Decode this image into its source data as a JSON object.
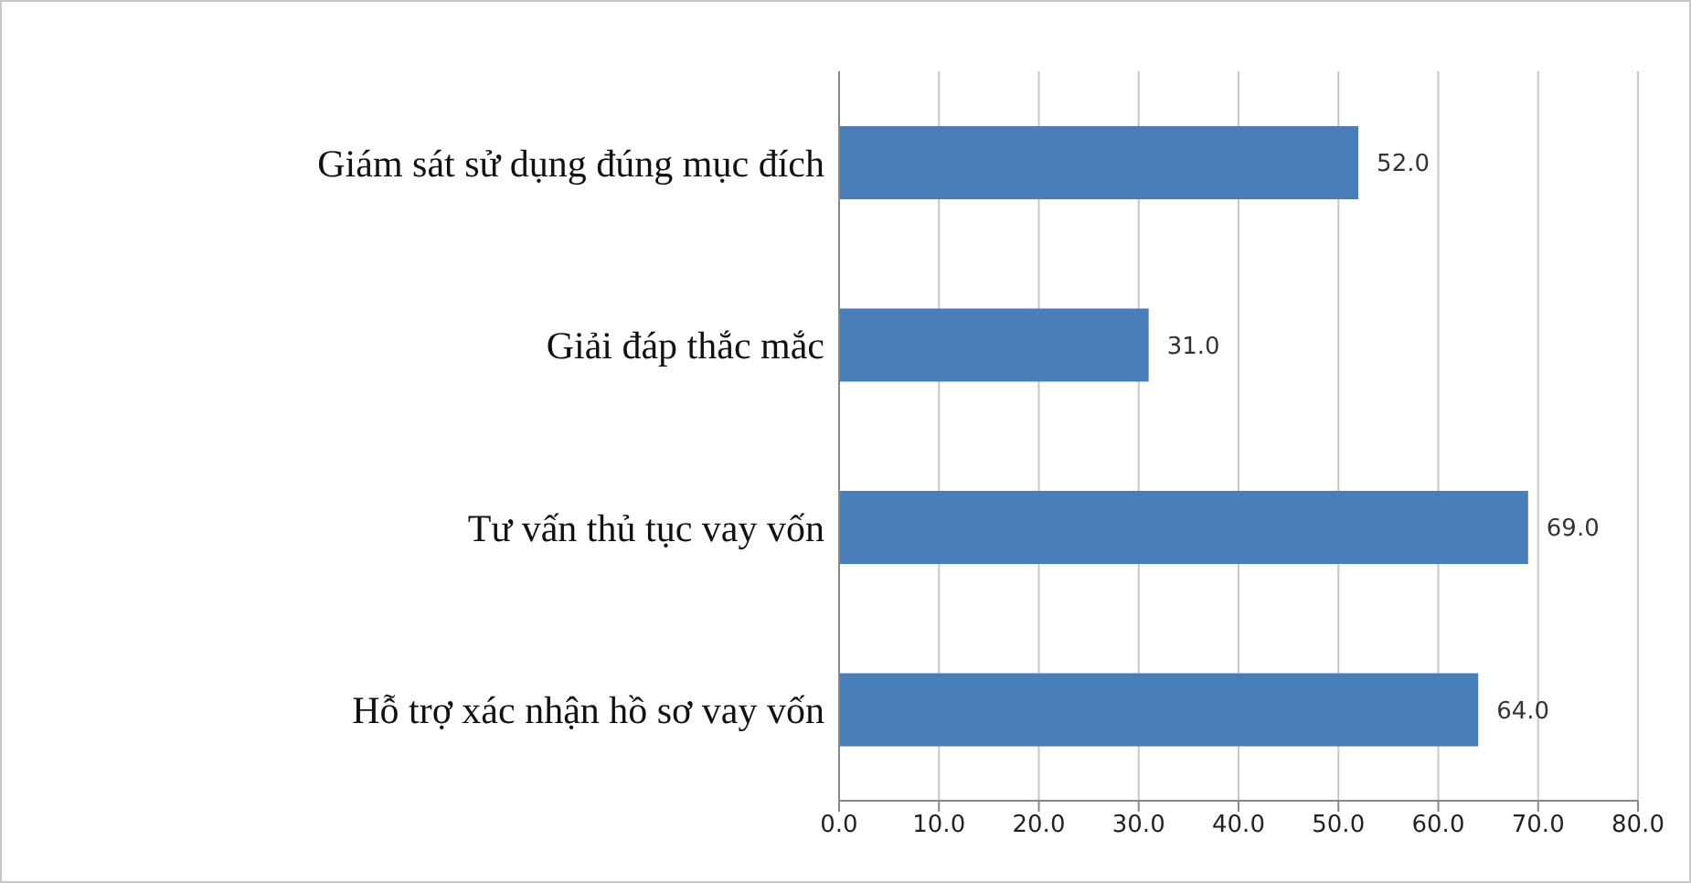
{
  "chart_data": {
    "type": "bar",
    "orientation": "horizontal",
    "categories": [
      "Giám sát sử dụng đúng mục đích",
      "Giải đáp thắc mắc",
      "Tư vấn thủ tục vay vốn",
      "Hỗ trợ xác nhận hồ sơ vay vốn"
    ],
    "values": [
      52,
      31,
      69,
      64
    ],
    "color": "#4a7ebb",
    "value_labels": [
      "52.0",
      "31.0",
      "69.0",
      "64.0"
    ],
    "xlim": [
      0,
      80
    ],
    "xticks": [
      {
        "value": 0,
        "label": "0.0"
      },
      {
        "value": 10,
        "label": "10.0"
      },
      {
        "value": 20,
        "label": "20.0"
      },
      {
        "value": 30,
        "label": "30.0"
      },
      {
        "value": 40,
        "label": "40.0"
      },
      {
        "value": 50,
        "label": "50.0"
      },
      {
        "value": 60,
        "label": "60.0"
      },
      {
        "value": 70,
        "label": "70.0"
      },
      {
        "value": 80,
        "label": "80.0"
      }
    ],
    "grid": "x",
    "legend": false
  }
}
